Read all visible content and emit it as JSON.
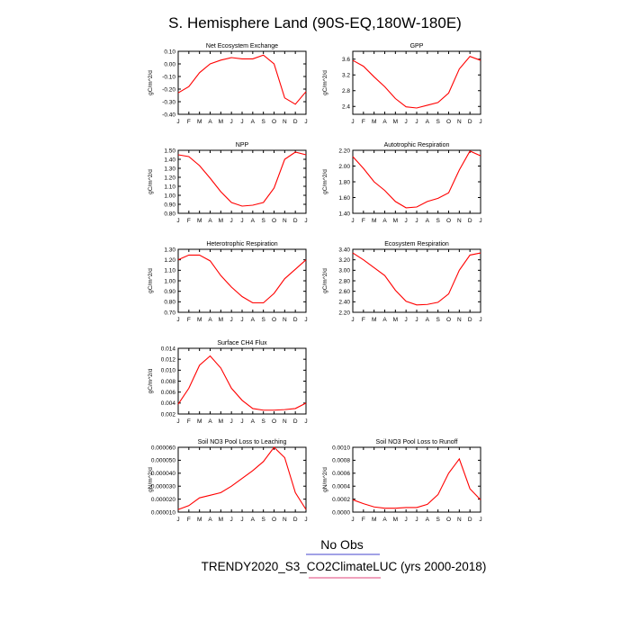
{
  "figure": {
    "title": "S. Hemisphere Land (90S-EQ,180W-180E)",
    "legend": [
      {
        "label": "No Obs",
        "color": "#4444cc"
      },
      {
        "label": "TRENDY2020_S3_CO2ClimateLUC (yrs 2000-2018)",
        "color": "#e0407a"
      }
    ]
  },
  "chart_data": [
    {
      "type": "line",
      "title": "Net Ecosystem Exchange",
      "ylabel": "gC/m^2/d",
      "categories": [
        "J",
        "F",
        "M",
        "A",
        "M",
        "J",
        "J",
        "A",
        "S",
        "O",
        "N",
        "D",
        "J"
      ],
      "yticks": [
        "0.10",
        "0.00",
        "-0.10",
        "-0.20",
        "-0.30",
        "-0.40"
      ],
      "ylim": [
        -0.4,
        0.1
      ],
      "values": [
        -0.23,
        -0.18,
        -0.07,
        0.0,
        0.03,
        0.05,
        0.04,
        0.04,
        0.07,
        0.0,
        -0.27,
        -0.32,
        -0.22
      ]
    },
    {
      "type": "line",
      "title": "GPP",
      "ylabel": "gC/m^2/d",
      "categories": [
        "J",
        "F",
        "M",
        "A",
        "M",
        "J",
        "J",
        "A",
        "S",
        "O",
        "N",
        "D",
        "J"
      ],
      "yticks": [
        "3.6",
        "3.2",
        "2.8",
        "2.4"
      ],
      "ylim": [
        2.2,
        3.8
      ],
      "values": [
        3.57,
        3.42,
        3.15,
        2.9,
        2.6,
        2.39,
        2.36,
        2.43,
        2.5,
        2.74,
        3.35,
        3.67,
        3.57
      ]
    },
    {
      "type": "line",
      "title": "NPP",
      "ylabel": "gC/m^2/d",
      "categories": [
        "J",
        "F",
        "M",
        "A",
        "M",
        "J",
        "J",
        "A",
        "S",
        "O",
        "N",
        "D",
        "J"
      ],
      "yticks": [
        "1.50",
        "1.40",
        "1.30",
        "1.20",
        "1.10",
        "1.00",
        "0.90",
        "0.80"
      ],
      "ylim": [
        0.8,
        1.5
      ],
      "values": [
        1.45,
        1.43,
        1.33,
        1.19,
        1.04,
        0.92,
        0.88,
        0.89,
        0.92,
        1.08,
        1.4,
        1.48,
        1.45
      ]
    },
    {
      "type": "line",
      "title": "Autotrophic Respiration",
      "ylabel": "gC/m^2/d",
      "categories": [
        "J",
        "F",
        "M",
        "A",
        "M",
        "J",
        "J",
        "A",
        "S",
        "O",
        "N",
        "D",
        "J"
      ],
      "yticks": [
        "2.20",
        "2.00",
        "1.80",
        "1.60",
        "1.40"
      ],
      "ylim": [
        1.4,
        2.2
      ],
      "values": [
        2.12,
        1.97,
        1.8,
        1.69,
        1.55,
        1.47,
        1.48,
        1.55,
        1.59,
        1.66,
        1.95,
        2.19,
        2.13
      ]
    },
    {
      "type": "line",
      "title": "Heterotrophic Respiration",
      "ylabel": "gC/m^2/d",
      "categories": [
        "J",
        "F",
        "M",
        "A",
        "M",
        "J",
        "J",
        "A",
        "S",
        "O",
        "N",
        "D",
        "J"
      ],
      "yticks": [
        "1.30",
        "1.20",
        "1.10",
        "1.00",
        "0.90",
        "0.80",
        "0.70"
      ],
      "ylim": [
        0.7,
        1.3
      ],
      "values": [
        1.2,
        1.245,
        1.245,
        1.19,
        1.05,
        0.94,
        0.85,
        0.79,
        0.79,
        0.88,
        1.02,
        1.11,
        1.2
      ]
    },
    {
      "type": "line",
      "title": "Ecosystem Respiration",
      "ylabel": "gC/m^2/d",
      "categories": [
        "J",
        "F",
        "M",
        "A",
        "M",
        "J",
        "J",
        "A",
        "S",
        "O",
        "N",
        "D",
        "J"
      ],
      "yticks": [
        "3.40",
        "3.20",
        "3.00",
        "2.80",
        "2.60",
        "2.40",
        "2.20"
      ],
      "ylim": [
        2.2,
        3.4
      ],
      "values": [
        3.33,
        3.2,
        3.05,
        2.9,
        2.62,
        2.41,
        2.34,
        2.35,
        2.39,
        2.55,
        3.0,
        3.29,
        3.33
      ]
    },
    {
      "type": "line",
      "title": "Surface CH4 Flux",
      "ylabel": "gC/m^2/d",
      "categories": [
        "J",
        "F",
        "M",
        "A",
        "M",
        "J",
        "J",
        "A",
        "S",
        "O",
        "N",
        "D",
        "J"
      ],
      "yticks": [
        "0.014",
        "0.012",
        "0.010",
        "0.008",
        "0.006",
        "0.004",
        "0.002"
      ],
      "ylim": [
        0.002,
        0.014
      ],
      "values": [
        0.0038,
        0.0067,
        0.0109,
        0.0126,
        0.0104,
        0.0067,
        0.0045,
        0.003,
        0.0027,
        0.0027,
        0.0028,
        0.003,
        0.004
      ]
    },
    {
      "type": "line",
      "title": "Soil NO3 Pool Loss to Leaching",
      "ylabel": "gN/m^2/d",
      "categories": [
        "J",
        "F",
        "M",
        "A",
        "M",
        "J",
        "J",
        "A",
        "S",
        "O",
        "N",
        "D",
        "J"
      ],
      "yticks": [
        "0.000060",
        "0.000050",
        "0.000040",
        "0.000030",
        "0.000020",
        "0.000010"
      ],
      "ylim": [
        1e-05,
        6e-05
      ],
      "values": [
        1.2e-05,
        1.5e-05,
        2.1e-05,
        2.3e-05,
        2.5e-05,
        3e-05,
        3.6e-05,
        4.2e-05,
        4.9e-05,
        6e-05,
        5.2e-05,
        2.5e-05,
        1.2e-05
      ]
    },
    {
      "type": "line",
      "title": "Soil NO3 Pool Loss to Runoff",
      "ylabel": "gN/m^2/d",
      "categories": [
        "J",
        "F",
        "M",
        "A",
        "M",
        "J",
        "J",
        "A",
        "S",
        "O",
        "N",
        "D",
        "J"
      ],
      "yticks": [
        "0.0010",
        "0.0008",
        "0.0006",
        "0.0004",
        "0.0002",
        "0.0000"
      ],
      "ylim": [
        0.0,
        0.001
      ],
      "values": [
        0.00019,
        0.00013,
        8e-05,
        6e-05,
        6e-05,
        7e-05,
        7e-05,
        0.00012,
        0.00027,
        0.0006,
        0.00082,
        0.00036,
        0.00019
      ]
    }
  ]
}
